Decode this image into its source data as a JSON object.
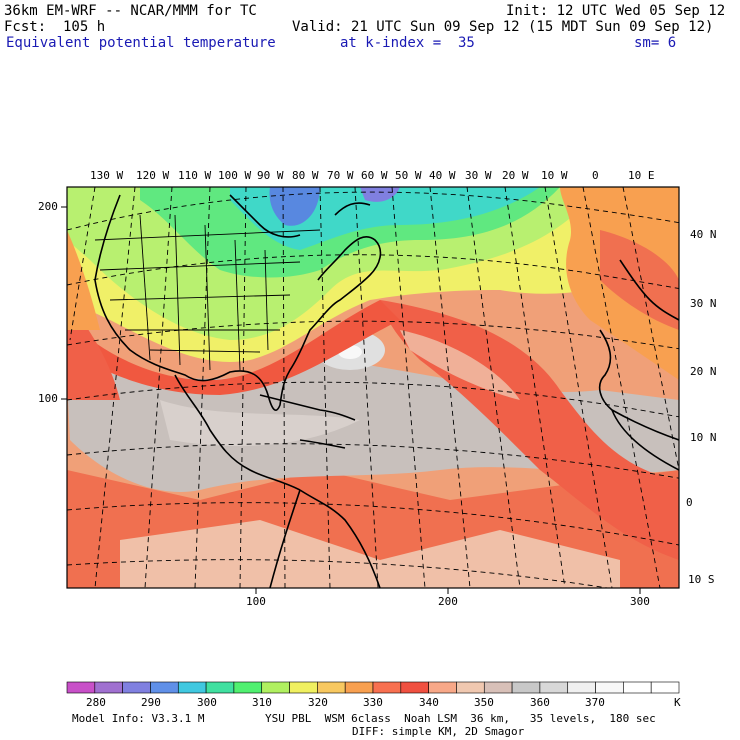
{
  "header": {
    "model": "36km EM-WRF -- NCAR/MMM for TC",
    "forecast": "Fcst:  105 h",
    "init": "Init: 12 UTC Wed 05 Sep 12",
    "valid": "Valid: 21 UTC Sun 09 Sep 12 (15 MDT Sun 09 Sep 12)",
    "field": "Equivalent potential temperature",
    "kindex": "at k-index =  35",
    "smooth": "sm= 6"
  },
  "top_lon_labels": [
    "130 W",
    "120 W",
    "110 W",
    "100 W",
    "90 W",
    "80 W",
    "70 W",
    "60 W",
    "50 W",
    "40 W",
    "30 W",
    "20 W",
    "10 W",
    "0",
    "10 E"
  ],
  "right_lat_labels": [
    "40 N",
    "30 N",
    "20 N",
    "10 N",
    "0",
    "10 S"
  ],
  "left_grid_labels": [
    "200",
    "100"
  ],
  "bottom_grid_labels": [
    "100",
    "200",
    "300"
  ],
  "colorbar": {
    "colors": [
      "#c850c8",
      "#a070d0",
      "#8080e0",
      "#6090e8",
      "#40c8e0",
      "#40e0a0",
      "#50f070",
      "#b0f060",
      "#f0f060",
      "#f8c860",
      "#f8a050",
      "#f87050",
      "#f05040",
      "#f8a888",
      "#f0c8b0",
      "#d8c0b8",
      "#c8c8c8",
      "#d8d8d8",
      "#f0f0f0",
      "#f8f8f8",
      "#ffffff",
      "#ffffff"
    ],
    "labels": [
      "280",
      "290",
      "300",
      "310",
      "320",
      "330",
      "340",
      "350",
      "360",
      "370"
    ],
    "unit": "K"
  },
  "footer": {
    "model_info": "Model Info: V3.3.1 M",
    "physics1": "YSU PBL  WSM 6class  Noah LSM  36 km,   35 levels,  180 sec",
    "physics2": "DIFF: simple KM, 2D Smagor"
  }
}
